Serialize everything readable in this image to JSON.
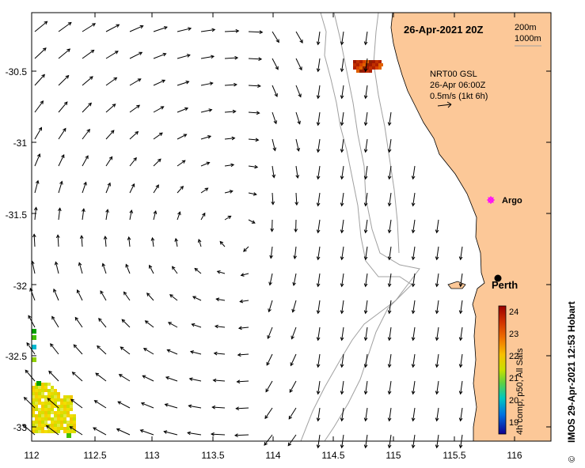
{
  "map": {
    "date_label": "26-Apr-2021 20Z",
    "depth_label_1": "200m",
    "depth_label_2": "1000m",
    "current_source": "NRT00 GSL",
    "current_time": "26-Apr 06:00Z",
    "current_scale": "0.5m/s (1kt 6h)",
    "argo_label": "Argo",
    "city_label": "Perth",
    "credit": "IMOS 29-Apr-2021 12:53 Hobart",
    "copyright": "©",
    "x_ticks": [
      "112",
      "112.5",
      "113",
      "113.5",
      "114",
      "114.5",
      "115",
      "115.5",
      "116"
    ],
    "y_ticks": [
      "-30.5",
      "-31",
      "-31.5",
      "-32",
      "-32.5",
      "-33"
    ],
    "colors": {
      "land": "#fcc898",
      "ocean": "#ffffff",
      "argo": "#ff00ff",
      "isobath": "#a0a0a0"
    }
  },
  "colorbar": {
    "title": "4h comp, p50, All Sats",
    "ticks": [
      "24",
      "23",
      "22",
      "21",
      "20",
      "19"
    ]
  }
}
